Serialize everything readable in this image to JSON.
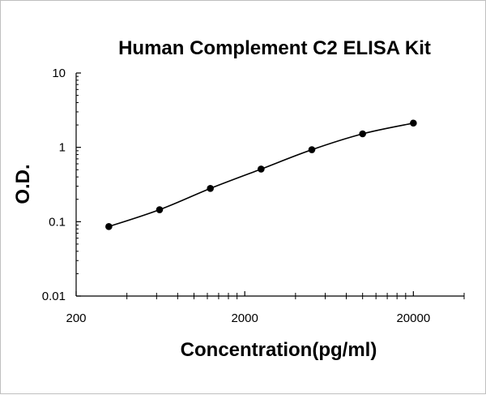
{
  "chart_data": {
    "type": "line",
    "title": "Human Complement C2 ELISA Kit",
    "xlabel": "Concentration(pg/ml)",
    "ylabel": "O.D.",
    "x_scale": "log",
    "y_scale": "log",
    "xlim": [
      200,
      40000
    ],
    "ylim": [
      0.01,
      10
    ],
    "xticks": [
      "200",
      "2000",
      "20000"
    ],
    "yticks": [
      "10",
      "1",
      "0.1",
      "0.01"
    ],
    "grid": false,
    "legend": "none",
    "series": [
      {
        "marker": "circle",
        "color": "#000000",
        "x": [
          312.5,
          625,
          1250,
          2500,
          5000,
          10000,
          20000
        ],
        "y": [
          0.086,
          0.145,
          0.28,
          0.51,
          0.93,
          1.52,
          2.12
        ]
      }
    ]
  }
}
